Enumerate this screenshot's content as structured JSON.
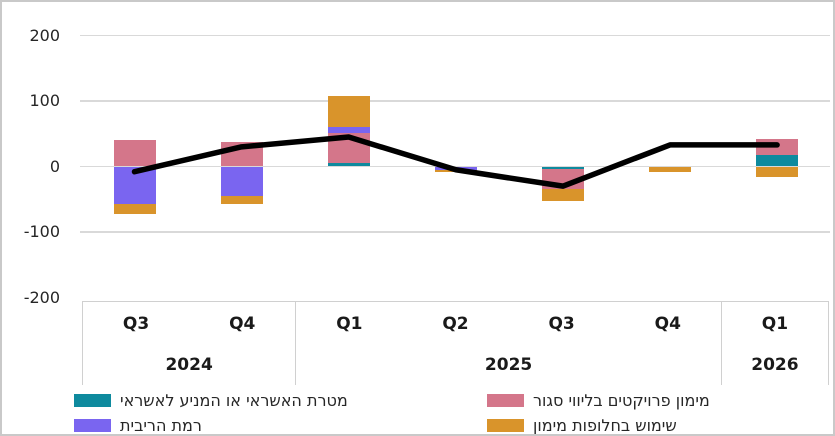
{
  "figure": {
    "background": "#ffffff",
    "border_color": "#c9c9c9"
  },
  "colors": {
    "credit_purpose": "#0e8a9e",
    "closed_escort": "#d4768a",
    "interest_level": "#7a65f0",
    "financing_alternatives": "#d9942b",
    "line": "#000000",
    "gridline": "#d9d9d9",
    "axis_text": "#262626"
  },
  "y_axis": {
    "tick_labels": [
      "200",
      "100",
      "0",
      "-100",
      "-200"
    ],
    "tick_values": [
      200,
      100,
      0,
      -100,
      -200
    ]
  },
  "x_axis": {
    "year_groups": [
      {
        "year": "2024",
        "quarters": [
          "Q3",
          "Q4"
        ]
      },
      {
        "year": "2025",
        "quarters": [
          "Q1",
          "Q2",
          "Q3",
          "Q4"
        ]
      },
      {
        "year": "2026",
        "quarters": [
          "Q1"
        ]
      }
    ]
  },
  "legend": {
    "columns": [
      [
        {
          "series_key": "credit_purpose",
          "label": "מטרת האשראי או המניע לאשראי"
        },
        {
          "series_key": "interest_level",
          "label": "רמת הריבית"
        }
      ],
      [
        {
          "series_key": "closed_escort",
          "label": "מימון פרויקטים בליווי סגור"
        },
        {
          "series_key": "financing_alternatives",
          "label": "שימוש בחלופות מימון"
        }
      ]
    ]
  },
  "chart_data": {
    "type": "bar",
    "subtype": "stacked-bars-with-line-overlay",
    "title": "",
    "xlabel": "",
    "ylabel": "",
    "categories": [
      "Q3 2024",
      "Q4 2024",
      "Q1 2025",
      "Q2 2025",
      "Q3 2025",
      "Q4 2025",
      "Q1 2026"
    ],
    "series": [
      {
        "name": "מטרת האשראי או המניע לאשראי",
        "key": "credit_purpose",
        "color": "#0e8a9e",
        "values": [
          0,
          0,
          6,
          0,
          -4,
          0,
          18
        ]
      },
      {
        "name": "מימון פרויקטים בליווי סגור",
        "key": "closed_escort",
        "color": "#d4768a",
        "values": [
          40,
          37,
          45,
          0,
          -31,
          0,
          24
        ]
      },
      {
        "name": "רמת הריבית",
        "key": "interest_level",
        "color": "#7a65f0",
        "values": [
          -58,
          -45,
          9,
          -6,
          0,
          0,
          0
        ]
      },
      {
        "name": "שימוש בחלופות מימון",
        "key": "financing_alternatives",
        "color": "#d9942b",
        "values": [
          -15,
          -13,
          48,
          -3,
          -18,
          -8,
          -16
        ]
      }
    ],
    "line_series": {
      "name": "line-overlay",
      "color": "#000000",
      "values": [
        -8,
        30,
        45,
        -5,
        -30,
        33,
        33
      ]
    },
    "ylim": [
      -200,
      200
    ],
    "yticks": [
      200,
      100,
      0,
      -100,
      -200
    ],
    "grid": true,
    "legend_position": "bottom"
  }
}
